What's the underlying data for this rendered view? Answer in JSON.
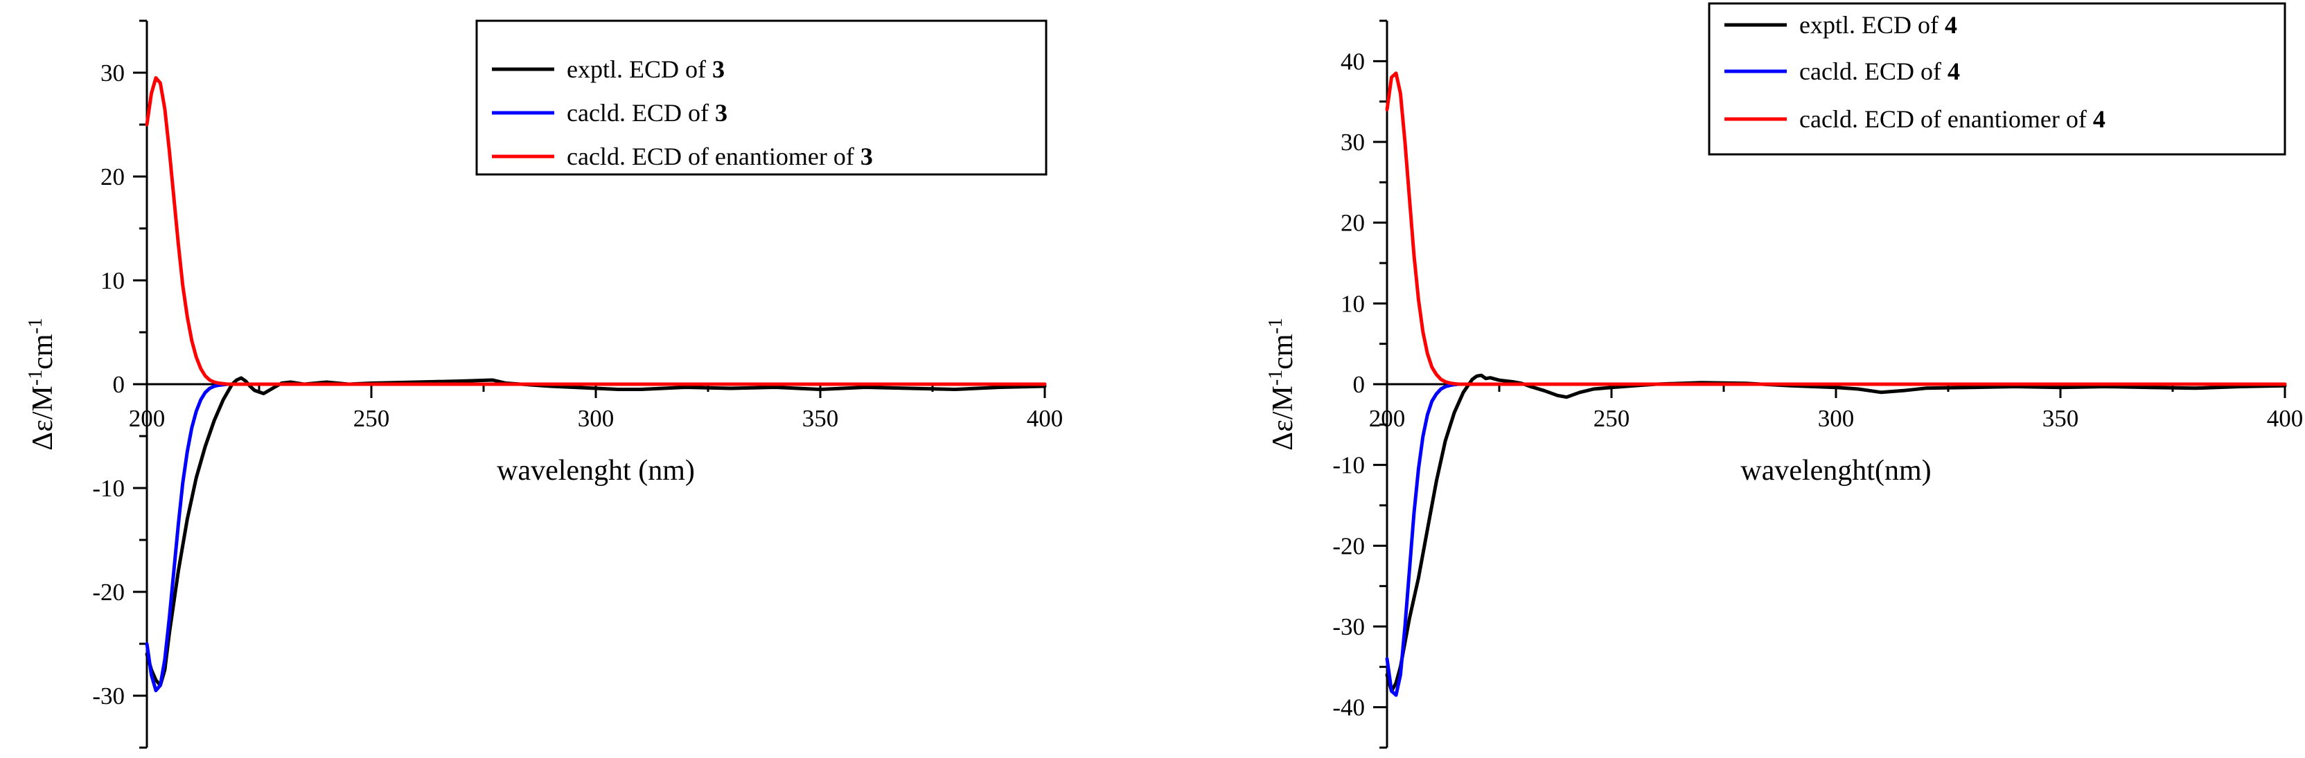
{
  "chart_data": [
    {
      "type": "line",
      "xlabel": "wavelenght (nm)",
      "ylabel": {
        "main": "Δε/M",
        "sup1": "-1",
        "mid": "cm",
        "sup2": "-1"
      },
      "xlim": [
        200,
        400
      ],
      "ylim": [
        -35,
        35
      ],
      "xticks": [
        200,
        250,
        300,
        350,
        400
      ],
      "yticks": [
        -30,
        -20,
        -10,
        0,
        10,
        20,
        30
      ],
      "grid": false,
      "legend_position": "top-right",
      "series": [
        {
          "legend_prefix": "exptl. ECD of ",
          "legend_bold": "3",
          "color": "#000000",
          "x": [
            200,
            201,
            202,
            203,
            204,
            205,
            207,
            209,
            211,
            213,
            215,
            217,
            219,
            220,
            221,
            222,
            223,
            224,
            226,
            228,
            230,
            232,
            235,
            240,
            245,
            250,
            260,
            270,
            277,
            280,
            290,
            300,
            305,
            310,
            315,
            320,
            330,
            340,
            350,
            360,
            370,
            380,
            390,
            400
          ],
          "y": [
            -26,
            -27.5,
            -28.5,
            -29,
            -27.5,
            -24,
            -18,
            -13,
            -9,
            -6,
            -3.5,
            -1.5,
            0,
            0.4,
            0.6,
            0.3,
            -0.2,
            -0.6,
            -0.9,
            -0.4,
            0.1,
            0.2,
            0,
            0.2,
            0,
            0.1,
            0.2,
            0.3,
            0.4,
            0.1,
            -0.2,
            -0.4,
            -0.5,
            -0.5,
            -0.4,
            -0.3,
            -0.4,
            -0.3,
            -0.5,
            -0.3,
            -0.4,
            -0.5,
            -0.3,
            -0.2
          ]
        },
        {
          "legend_prefix": "cacld. ECD of ",
          "legend_bold": "3",
          "color": "#0000ff",
          "x": [
            200,
            201,
            202,
            203,
            204,
            205,
            206,
            207,
            208,
            209,
            210,
            211,
            212,
            213,
            214,
            215,
            216,
            218,
            220,
            222,
            225,
            230,
            240,
            260,
            300,
            350,
            400
          ],
          "y": [
            -25,
            -28,
            -29.5,
            -29,
            -26.5,
            -22.5,
            -18,
            -13.5,
            -9.5,
            -6.5,
            -4.2,
            -2.6,
            -1.5,
            -0.8,
            -0.4,
            -0.2,
            -0.1,
            0,
            0,
            0,
            0,
            0,
            0,
            0,
            0,
            0,
            0
          ]
        },
        {
          "legend_prefix": "cacld. ECD of enantiomer of ",
          "legend_bold": "3",
          "color": "#ff0000",
          "x": [
            200,
            201,
            202,
            203,
            204,
            205,
            206,
            207,
            208,
            209,
            210,
            211,
            212,
            213,
            214,
            215,
            216,
            218,
            220,
            222,
            225,
            230,
            240,
            260,
            300,
            350,
            400
          ],
          "y": [
            25,
            28,
            29.5,
            29,
            26.5,
            22.5,
            18,
            13.5,
            9.5,
            6.5,
            4.2,
            2.6,
            1.5,
            0.8,
            0.4,
            0.2,
            0.1,
            0,
            0,
            0,
            0,
            0,
            0,
            0,
            0,
            0,
            0
          ]
        }
      ]
    },
    {
      "type": "line",
      "xlabel": "wavelenght(nm)",
      "ylabel": {
        "main": "Δε/M",
        "sup1": "-1",
        "mid": "cm",
        "sup2": "-1"
      },
      "xlim": [
        200,
        400
      ],
      "ylim": [
        -45,
        45
      ],
      "xticks": [
        200,
        250,
        300,
        350,
        400
      ],
      "yticks": [
        -40,
        -30,
        -20,
        -10,
        0,
        10,
        20,
        30,
        40
      ],
      "grid": false,
      "legend_position": "top-right",
      "series": [
        {
          "legend_prefix": "exptl. ECD of ",
          "legend_bold": "4",
          "color": "#000000",
          "x": [
            200,
            201,
            202,
            203,
            204,
            205,
            207,
            209,
            211,
            213,
            215,
            217,
            219,
            220,
            221,
            222,
            223,
            225,
            228,
            230,
            232,
            235,
            238,
            240,
            243,
            246,
            250,
            255,
            260,
            270,
            280,
            290,
            300,
            305,
            310,
            315,
            320,
            330,
            340,
            350,
            360,
            370,
            380,
            390,
            400
          ],
          "y": [
            -36,
            -38,
            -37,
            -35,
            -32,
            -29,
            -24,
            -18,
            -12,
            -7,
            -3.5,
            -1,
            0.6,
            1,
            1.1,
            0.7,
            0.8,
            0.5,
            0.3,
            0.1,
            -0.3,
            -0.8,
            -1.4,
            -1.6,
            -1,
            -0.6,
            -0.4,
            -0.2,
            0,
            0.2,
            0.1,
            -0.2,
            -0.4,
            -0.6,
            -1,
            -0.8,
            -0.5,
            -0.4,
            -0.3,
            -0.4,
            -0.3,
            -0.4,
            -0.5,
            -0.3,
            -0.2
          ]
        },
        {
          "legend_prefix": "cacld. ECD of ",
          "legend_bold": "4",
          "color": "#0000ff",
          "x": [
            200,
            201,
            202,
            203,
            204,
            205,
            206,
            207,
            208,
            209,
            210,
            211,
            212,
            213,
            214,
            215,
            216,
            218,
            220,
            222,
            225,
            230,
            240,
            260,
            300,
            350,
            400
          ],
          "y": [
            -34,
            -38,
            -38.5,
            -36,
            -30,
            -23,
            -16,
            -10.5,
            -6.5,
            -3.8,
            -2.1,
            -1.2,
            -0.6,
            -0.3,
            -0.15,
            -0.05,
            0,
            0,
            0,
            0,
            0,
            0,
            0,
            0,
            0,
            0,
            0
          ]
        },
        {
          "legend_prefix": "cacld. ECD of enantiomer of ",
          "legend_bold": "4",
          "color": "#ff0000",
          "x": [
            200,
            201,
            202,
            203,
            204,
            205,
            206,
            207,
            208,
            209,
            210,
            211,
            212,
            213,
            214,
            215,
            216,
            218,
            220,
            222,
            225,
            230,
            240,
            260,
            300,
            350,
            400
          ],
          "y": [
            34,
            38,
            38.5,
            36,
            30,
            23,
            16,
            10.5,
            6.5,
            3.8,
            2.1,
            1.2,
            0.6,
            0.3,
            0.15,
            0.05,
            0,
            0,
            0,
            0,
            0,
            0,
            0,
            0,
            0,
            0,
            0
          ]
        }
      ]
    }
  ]
}
